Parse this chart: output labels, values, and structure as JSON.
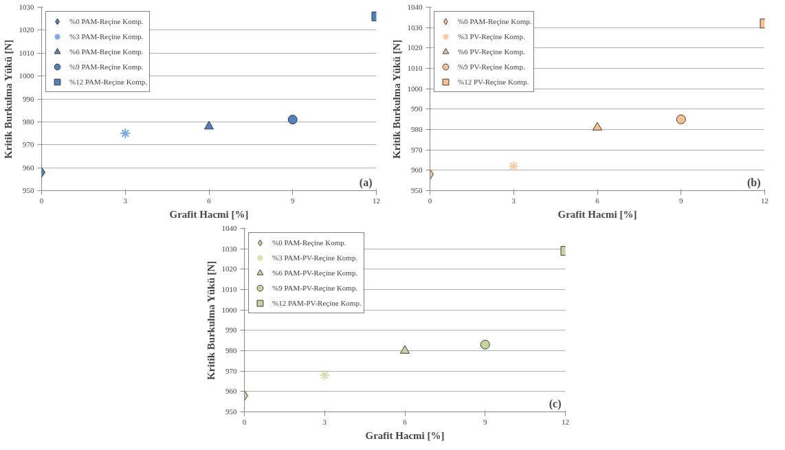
{
  "chart_data": [
    {
      "type": "scatter",
      "xlabel": "Grafit Hacmi [%]",
      "ylabel": "Kritik Burkulma Yükü [N]",
      "annotations": [
        "(a)"
      ],
      "xlim": [
        0,
        12
      ],
      "xticks": [
        0,
        3,
        6,
        9,
        12
      ],
      "ylim": [
        950,
        1030
      ],
      "yticks": [
        950,
        960,
        970,
        980,
        990,
        1000,
        1010,
        1020,
        1030
      ],
      "grid": "y",
      "legend": "top left",
      "series": [
        {
          "name": "%0 PAM-Reçine Komp.",
          "color": "#4f81bd",
          "marker": "diamond",
          "x": [
            0
          ],
          "values": [
            958
          ]
        },
        {
          "name": "%3 PAM-Reçine Komp.",
          "color": "#7ea6e0",
          "marker": "cross",
          "x": [
            3
          ],
          "values": [
            975
          ]
        },
        {
          "name": "%6 PAM-Reçine Komp.",
          "color": "#4f81bd",
          "marker": "triangle",
          "x": [
            6
          ],
          "values": [
            978
          ]
        },
        {
          "name": "%9 PAM-Reçine Komp.",
          "color": "#4f81bd",
          "marker": "circle",
          "x": [
            9
          ],
          "values": [
            981
          ]
        },
        {
          "name": "%12 PAM-Reçine Komp.",
          "color": "#4f81bd",
          "marker": "square",
          "x": [
            12
          ],
          "values": [
            1026
          ]
        }
      ]
    },
    {
      "type": "scatter",
      "xlabel": "Grafit Hacmi [%]",
      "ylabel": "Kritik Burkulma Yükü [N]",
      "annotations": [
        "(b)"
      ],
      "xlim": [
        0,
        12
      ],
      "xticks": [
        0,
        3,
        6,
        9,
        12
      ],
      "ylim": [
        950,
        1040
      ],
      "yticks": [
        950,
        960,
        970,
        980,
        990,
        1000,
        1010,
        1020,
        1030,
        1040
      ],
      "grid": "y",
      "legend": "top left",
      "series": [
        {
          "name": "%0 PAM-Reçine Komp.",
          "color": "#fac090",
          "marker": "diamond",
          "x": [
            0
          ],
          "values": [
            958
          ]
        },
        {
          "name": "%3 PV-Reçine Komp.",
          "color": "#fcc89d",
          "marker": "cross",
          "x": [
            3
          ],
          "values": [
            962
          ]
        },
        {
          "name": "%6 PV-Reçine Komp.",
          "color": "#fac090",
          "marker": "triangle",
          "x": [
            6
          ],
          "values": [
            981
          ]
        },
        {
          "name": "%9 PV-Reçine Komp.",
          "color": "#fac090",
          "marker": "circle",
          "x": [
            9
          ],
          "values": [
            985
          ]
        },
        {
          "name": "%12 PV-Reçine Komp.",
          "color": "#fac090",
          "marker": "square",
          "x": [
            12
          ],
          "values": [
            1032
          ]
        }
      ]
    },
    {
      "type": "scatter",
      "xlabel": "Grafit Hacmi [%]",
      "ylabel": "Kritik Burkulma Yükü [N]",
      "annotations": [
        "(c)"
      ],
      "xlim": [
        0,
        12
      ],
      "xticks": [
        0,
        3,
        6,
        9,
        12
      ],
      "ylim": [
        950,
        1040
      ],
      "yticks": [
        950,
        960,
        970,
        980,
        990,
        1000,
        1010,
        1020,
        1030,
        1040
      ],
      "grid": "y",
      "legend": "top left",
      "series": [
        {
          "name": "%0 PAM-Reçine Komp.",
          "color": "#c3d69b",
          "marker": "diamond",
          "x": [
            0
          ],
          "values": [
            958
          ]
        },
        {
          "name": "%3 PAM-PV-Reçine Komp.",
          "color": "#d0e2b0",
          "marker": "cross",
          "x": [
            3
          ],
          "values": [
            968
          ]
        },
        {
          "name": "%6 PAM-PV-Reçine Komp.",
          "color": "#c3d69b",
          "marker": "triangle",
          "x": [
            6
          ],
          "values": [
            980
          ]
        },
        {
          "name": "%9 PAM-PV-Reçine Komp.",
          "color": "#c3d69b",
          "marker": "circle",
          "x": [
            9
          ],
          "values": [
            983
          ]
        },
        {
          "name": "%12 PAM-PV-Reçine Komp.",
          "color": "#c3d69b",
          "marker": "square",
          "x": [
            12
          ],
          "values": [
            1029
          ]
        }
      ]
    }
  ]
}
